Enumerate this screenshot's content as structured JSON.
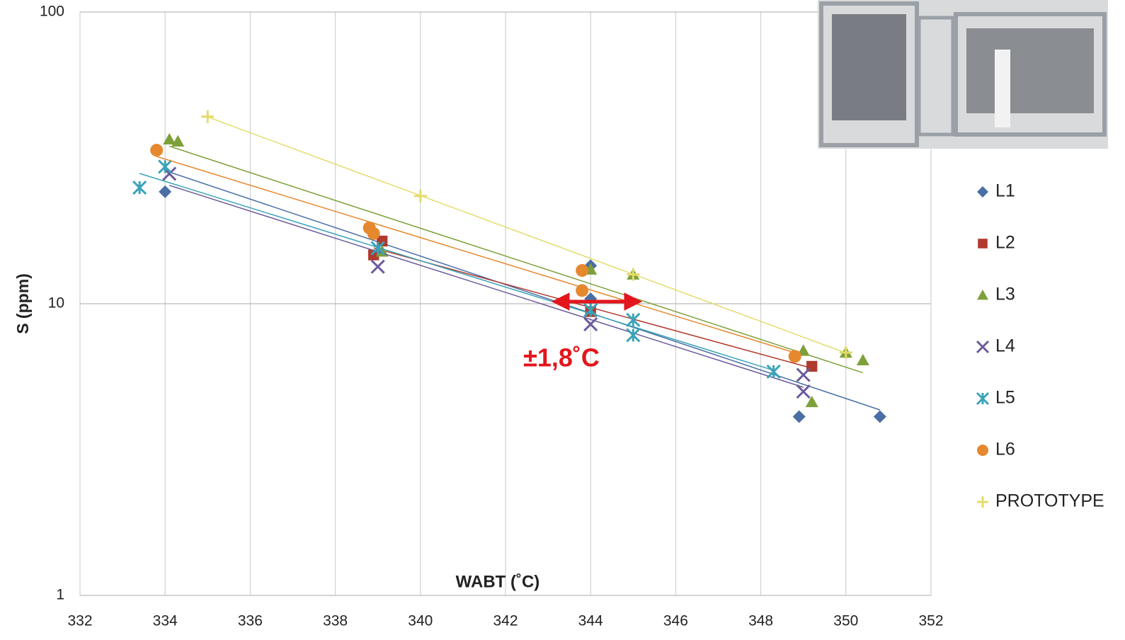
{
  "chart_data": {
    "type": "scatter",
    "y_label": "S (ppm)",
    "x_label": "WABT (˚C)",
    "annotation": "±1,8˚C",
    "xlim": [
      332,
      352
    ],
    "xticks": [
      332,
      334,
      336,
      338,
      340,
      342,
      344,
      346,
      348,
      350,
      352
    ],
    "ylim": [
      1,
      100
    ],
    "yticks": [
      1,
      10,
      100
    ],
    "log_y": true,
    "grid": true,
    "trendline": true,
    "legend": "right",
    "series": [
      {
        "name": "L1",
        "color": "#4a6fa5",
        "marker": "diamond",
        "x": [
          334,
          344,
          344,
          348.9,
          350.8
        ],
        "values": [
          24.2,
          13.5,
          10.4,
          4.1,
          4.1
        ]
      },
      {
        "name": "L2",
        "color": "#b03a2e",
        "marker": "square",
        "x": [
          338.9,
          339.1,
          344,
          349.2
        ],
        "values": [
          14.7,
          16.4,
          9.4,
          6.1
        ]
      },
      {
        "name": "L3",
        "color": "#7ea03a",
        "marker": "triangle",
        "x": [
          334.1,
          334.3,
          339.1,
          344,
          345,
          349,
          349.2,
          350,
          350.4
        ],
        "values": [
          36.6,
          36,
          15.1,
          13.1,
          12.6,
          6.9,
          4.6,
          6.8,
          6.4
        ]
      },
      {
        "name": "L4",
        "color": "#6c5b9b",
        "marker": "x",
        "x": [
          334.1,
          339,
          344,
          349,
          349
        ],
        "values": [
          27.9,
          13.4,
          8.5,
          5.7,
          5.0
        ]
      },
      {
        "name": "L5",
        "color": "#3aa3b8",
        "marker": "asterisk",
        "x": [
          333.4,
          334,
          339,
          344,
          345,
          345,
          348.3
        ],
        "values": [
          25,
          29.5,
          15.5,
          9.5,
          8.8,
          7.8,
          5.85
        ]
      },
      {
        "name": "L6",
        "color": "#e6882e",
        "marker": "circle",
        "x": [
          333.8,
          338.8,
          338.9,
          343.8,
          343.8,
          348.8
        ],
        "values": [
          33.6,
          18.2,
          17.4,
          13,
          11.1,
          6.6
        ]
      },
      {
        "name": "PROTOTYPE",
        "color": "#e3dc6a",
        "marker": "plus",
        "x": [
          335,
          340,
          345,
          350
        ],
        "values": [
          43.8,
          23.4,
          12.6,
          6.8
        ]
      }
    ]
  }
}
